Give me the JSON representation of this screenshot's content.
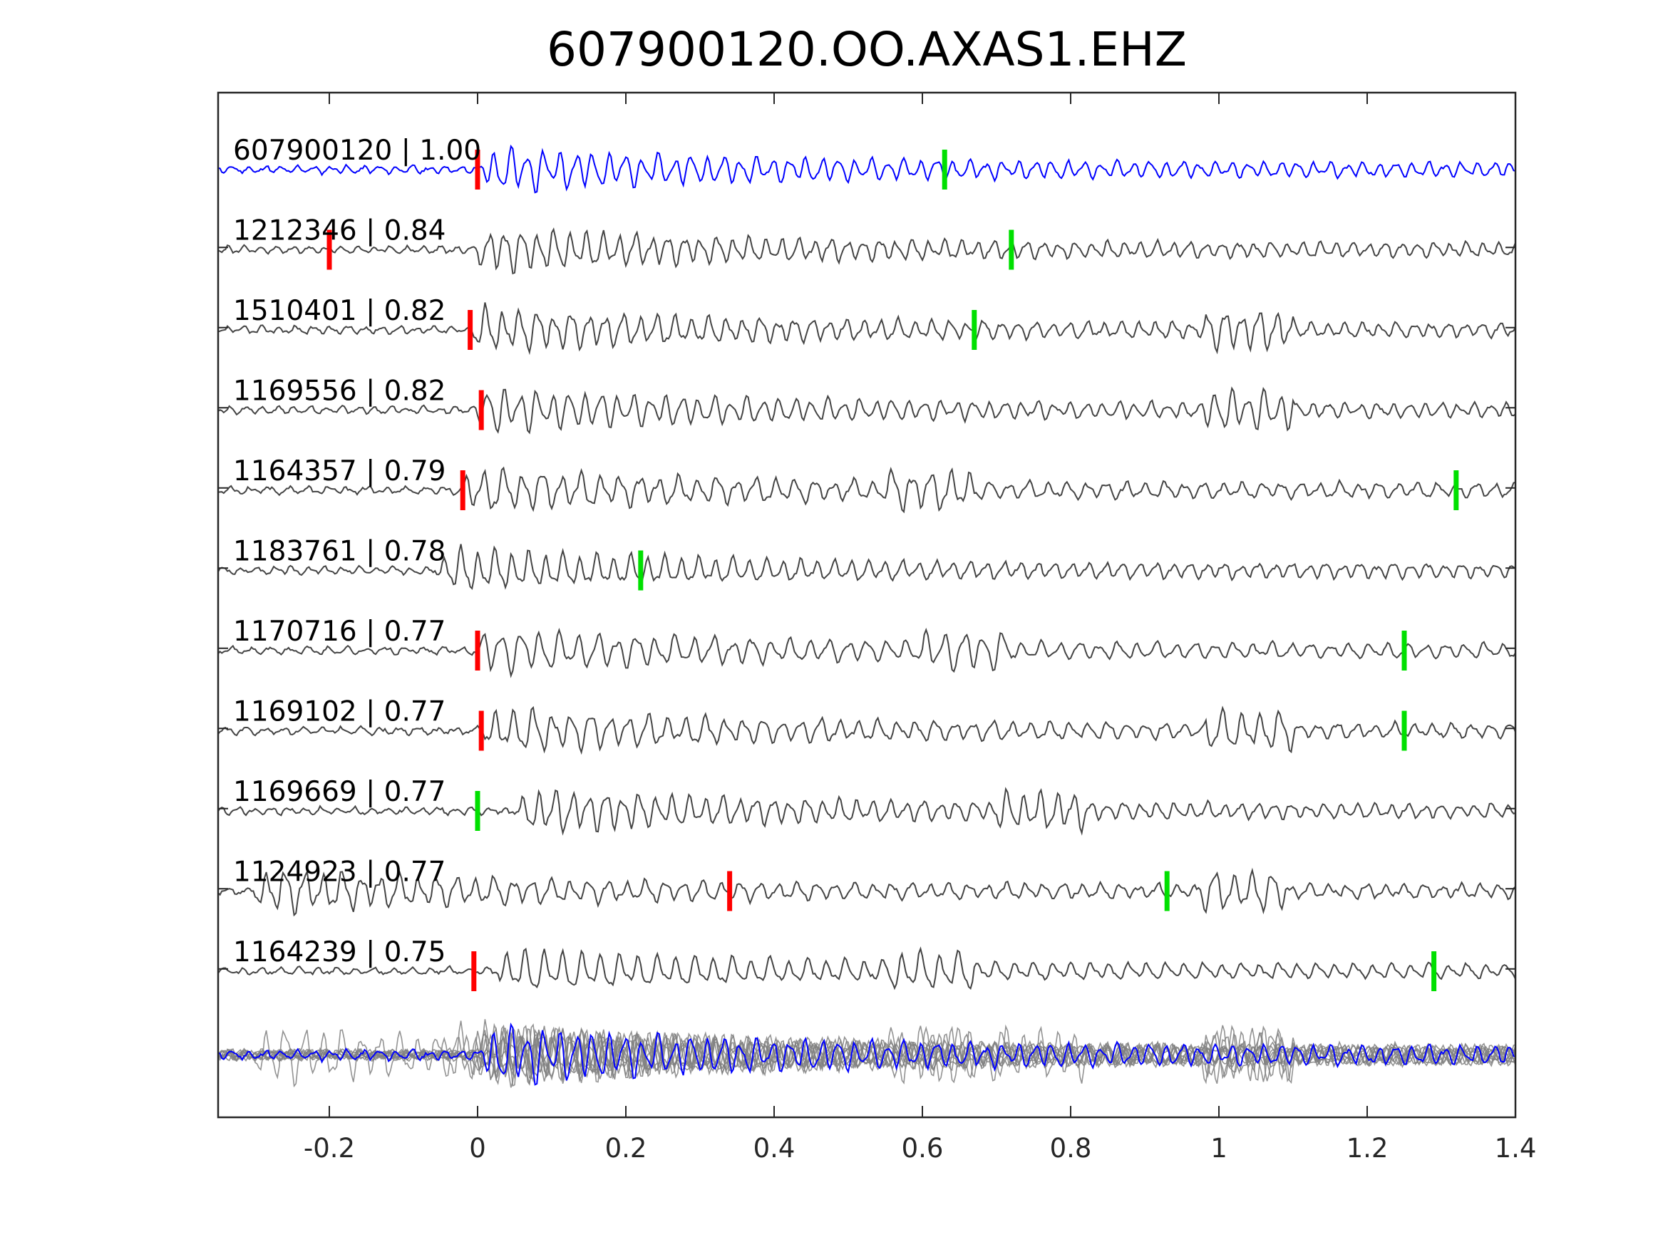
{
  "chart_data": {
    "type": "line",
    "title": "607900120.OO.AXAS1.EHZ",
    "xlabel": "",
    "ylabel": "",
    "xlim": [
      -0.35,
      1.4
    ],
    "x_ticks": [
      {
        "value": -0.2,
        "label": "-0.2"
      },
      {
        "value": 0,
        "label": "0"
      },
      {
        "value": 0.2,
        "label": "0.2"
      },
      {
        "value": 0.4,
        "label": "0.4"
      },
      {
        "value": 0.6,
        "label": "0.6"
      },
      {
        "value": 0.8,
        "label": "0.8"
      },
      {
        "value": 1,
        "label": "1"
      },
      {
        "value": 1.2,
        "label": "1.2"
      },
      {
        "value": 1.4,
        "label": "1.4"
      }
    ],
    "grid": false,
    "colors": {
      "template": "#0000ff",
      "match": "#444444",
      "stack": "#808080",
      "p_pick": "#ff0000",
      "s_pick": "#00e000",
      "axes": "#262626"
    },
    "series": [
      {
        "name": "607900120",
        "cc": "1.00",
        "label": "607900120 | 1.00",
        "template": true,
        "p_pick": 0.0,
        "s_pick": 0.63,
        "onset": 0.01,
        "seed": 11
      },
      {
        "name": "1212346",
        "cc": "0.84",
        "label": "1212346 | 0.84",
        "template": false,
        "p_pick": -0.2,
        "s_pick": 0.72,
        "onset": 0.0,
        "seed": 23
      },
      {
        "name": "1510401",
        "cc": "0.82",
        "label": "1510401 | 0.82",
        "template": false,
        "p_pick": -0.01,
        "s_pick": 0.67,
        "onset": -0.005,
        "seed": 37,
        "burst": 0.98
      },
      {
        "name": "1169556",
        "cc": "0.82",
        "label": "1169556 | 0.82",
        "template": false,
        "p_pick": 0.005,
        "s_pick": null,
        "onset": 0.0,
        "seed": 41,
        "burst": 0.98
      },
      {
        "name": "1164357",
        "cc": "0.79",
        "label": "1164357 | 0.79",
        "template": false,
        "p_pick": -0.02,
        "s_pick": 1.32,
        "onset": -0.02,
        "seed": 53,
        "burst": 0.55
      },
      {
        "name": "1183761",
        "cc": "0.78",
        "label": "1183761 | 0.78",
        "template": false,
        "p_pick": null,
        "s_pick": 0.22,
        "onset": -0.05,
        "seed": 67
      },
      {
        "name": "1170716",
        "cc": "0.77",
        "label": "1170716 | 0.77",
        "template": false,
        "p_pick": 0.0,
        "s_pick": 1.25,
        "onset": 0.0,
        "seed": 71,
        "burst": 0.6
      },
      {
        "name": "1169102",
        "cc": "0.77",
        "label": "1169102 | 0.77",
        "template": false,
        "p_pick": 0.005,
        "s_pick": 1.25,
        "onset": 0.01,
        "seed": 83,
        "burst": 0.98
      },
      {
        "name": "1169669",
        "cc": "0.77",
        "label": "1169669 | 0.77",
        "template": false,
        "p_pick": null,
        "s_pick": 0.0,
        "onset": 0.06,
        "seed": 97,
        "burst": 0.7
      },
      {
        "name": "1124923",
        "cc": "0.77",
        "label": "1124923 | 0.77",
        "template": false,
        "p_pick": 0.34,
        "s_pick": 0.93,
        "onset": -0.3,
        "seed": 101,
        "burst": 0.97
      },
      {
        "name": "1164239",
        "cc": "0.75",
        "label": "1164239 | 0.75",
        "template": false,
        "p_pick": -0.005,
        "s_pick": 1.29,
        "onset": 0.03,
        "seed": 113,
        "burst": 0.55
      }
    ]
  }
}
